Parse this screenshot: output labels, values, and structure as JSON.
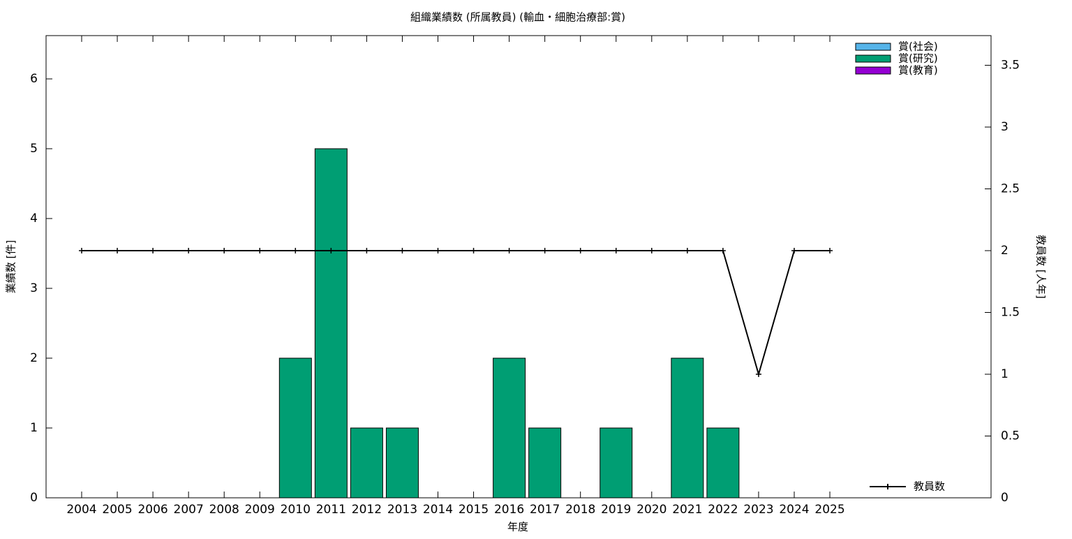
{
  "chart_data": {
    "type": "bar",
    "stacked": true,
    "title": "組織業績数 (所属教員) (輸血・細胞治療部:賞)",
    "x_label": "年度",
    "y_label": "業績数 [件]",
    "y2_label": "教員数 [人年]",
    "categories": [
      "2004",
      "2005",
      "2006",
      "2007",
      "2008",
      "2009",
      "2010",
      "2011",
      "2012",
      "2013",
      "2014",
      "2015",
      "2016",
      "2017",
      "2018",
      "2019",
      "2020",
      "2021",
      "2022",
      "2023",
      "2024",
      "2025"
    ],
    "series": [
      {
        "name": "賞(社会)",
        "color": "#56b4e9",
        "values": [
          0,
          0,
          0,
          0,
          0,
          0,
          0,
          0,
          0,
          0,
          0,
          0,
          0,
          0,
          0,
          0,
          0,
          0,
          0,
          0,
          0,
          0
        ]
      },
      {
        "name": "賞(研究)",
        "color": "#009e73",
        "values": [
          0,
          0,
          0,
          0,
          0,
          0,
          2,
          5,
          1,
          1,
          0,
          0,
          2,
          1,
          0,
          1,
          0,
          2,
          1,
          0,
          0,
          0
        ]
      },
      {
        "name": "賞(教育)",
        "color": "#9400d3",
        "values": [
          0,
          0,
          0,
          0,
          0,
          0,
          0,
          0,
          0,
          0,
          0,
          0,
          0,
          0,
          0,
          0,
          0,
          0,
          0,
          0,
          0,
          0
        ]
      },
      {
        "name": "教員数",
        "type": "line",
        "axis": "y2",
        "color": "#000000",
        "values": [
          2,
          2,
          2,
          2,
          2,
          2,
          2,
          2,
          2,
          2,
          2,
          2,
          2,
          2,
          2,
          2,
          2,
          2,
          2,
          1,
          2,
          2
        ]
      }
    ],
    "ylim": [
      0,
      6.62
    ],
    "yticks": [
      0,
      1,
      2,
      3,
      4,
      5,
      6
    ],
    "y2lim": [
      0,
      3.74
    ],
    "y2ticks": [
      0,
      0.5,
      1,
      1.5,
      2,
      2.5,
      3,
      3.5
    ],
    "legend": "top-right"
  }
}
